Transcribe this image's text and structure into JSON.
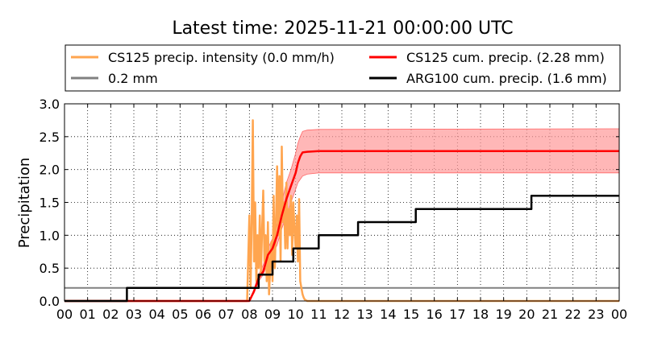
{
  "chart_data": {
    "type": "line",
    "title": "Latest time: 2025-11-21 00:00:00 UTC",
    "ylabel": "Precipitation",
    "xlabel": "",
    "xlim": [
      0,
      24
    ],
    "ylim": [
      0,
      3.0
    ],
    "grid": true,
    "grid_style": "dotted",
    "legend_position": "top (outside plot)",
    "x_ticks": [
      "00",
      "01",
      "02",
      "03",
      "04",
      "05",
      "06",
      "07",
      "08",
      "09",
      "10",
      "11",
      "12",
      "13",
      "14",
      "15",
      "16",
      "17",
      "18",
      "19",
      "20",
      "21",
      "22",
      "23",
      "00"
    ],
    "y_ticks": [
      "0.0",
      "0.5",
      "1.0",
      "1.5",
      "2.0",
      "2.5",
      "3.0"
    ],
    "legend": [
      {
        "label": "CS125 precip. intensity (0.0 mm/h)",
        "color": "#ffa54f"
      },
      {
        "label": "CS125 cum. precip. (2.28 mm)",
        "color": "#ff0000"
      },
      {
        "label": "0.2 mm",
        "color": "#808080"
      },
      {
        "label": "ARG100 cum. precip. (1.6 mm)",
        "color": "#000000"
      }
    ],
    "series": [
      {
        "name": "CS125 precip. intensity (0.0 mm/h)",
        "color": "#ffa54f",
        "x": [
          0,
          7.9,
          8.0,
          8.05,
          8.1,
          8.15,
          8.2,
          8.25,
          8.3,
          8.35,
          8.4,
          8.45,
          8.5,
          8.55,
          8.6,
          8.65,
          8.7,
          8.75,
          8.8,
          8.85,
          8.9,
          8.95,
          9.0,
          9.05,
          9.1,
          9.15,
          9.2,
          9.25,
          9.3,
          9.35,
          9.4,
          9.45,
          9.5,
          9.55,
          9.6,
          9.65,
          9.7,
          9.75,
          9.8,
          9.85,
          9.9,
          9.95,
          10.0,
          10.05,
          10.1,
          10.15,
          10.2,
          10.25,
          10.3,
          10.35,
          10.4,
          10.5,
          10.6,
          11.0,
          24
        ],
        "y": [
          0,
          0,
          1.3,
          0.2,
          1.2,
          2.75,
          0.6,
          1.5,
          0.3,
          1.0,
          0.5,
          1.3,
          0.4,
          1.1,
          1.68,
          0.6,
          1.0,
          0.3,
          1.2,
          0.1,
          0.5,
          0.9,
          0.3,
          1.6,
          0.5,
          1.2,
          2.05,
          1.0,
          1.9,
          0.6,
          2.35,
          1.2,
          1.5,
          0.8,
          1.8,
          0.8,
          1.4,
          1.0,
          1.6,
          0.7,
          1.5,
          1.1,
          0.8,
          1.3,
          0.6,
          1.55,
          0.3,
          0.2,
          0.1,
          0.05,
          0.02,
          0.0,
          0.0,
          0.0,
          0.0
        ]
      },
      {
        "name": "CS125 cum. precip. (2.28 mm)",
        "color": "#ff0000",
        "x": [
          0,
          8.0,
          8.2,
          8.4,
          8.6,
          8.8,
          9.0,
          9.2,
          9.4,
          9.6,
          9.8,
          10.0,
          10.1,
          10.2,
          10.3,
          10.5,
          11.0,
          24
        ],
        "y": [
          0,
          0,
          0.15,
          0.35,
          0.45,
          0.7,
          0.8,
          1.0,
          1.3,
          1.55,
          1.75,
          1.95,
          2.1,
          2.2,
          2.26,
          2.27,
          2.28,
          2.28
        ]
      },
      {
        "name": "CS125 cum. precip. uncertainty band",
        "color": "#ff9999",
        "x": [
          0,
          8.0,
          8.2,
          8.4,
          8.6,
          8.8,
          9.0,
          9.2,
          9.4,
          9.6,
          9.8,
          10.0,
          10.1,
          10.2,
          10.3,
          10.5,
          11.0,
          24
        ],
        "lower": [
          0,
          0,
          0.12,
          0.3,
          0.4,
          0.6,
          0.7,
          0.85,
          1.1,
          1.3,
          1.5,
          1.7,
          1.8,
          1.85,
          1.9,
          1.93,
          1.95,
          1.95
        ],
        "upper": [
          0,
          0,
          0.18,
          0.4,
          0.55,
          0.8,
          0.95,
          1.15,
          1.5,
          1.8,
          2.0,
          2.25,
          2.4,
          2.5,
          2.58,
          2.6,
          2.61,
          2.62
        ]
      },
      {
        "name": "0.2 mm",
        "color": "#808080",
        "x": [
          0,
          24
        ],
        "y": [
          0.2,
          0.2
        ]
      },
      {
        "name": "ARG100 cum. precip. (1.6 mm)",
        "color": "#000000",
        "x": [
          0,
          2.7,
          2.7,
          8.4,
          8.4,
          9.0,
          9.0,
          9.9,
          9.9,
          11.0,
          11.0,
          12.7,
          12.7,
          15.2,
          15.2,
          20.2,
          20.2,
          24
        ],
        "y": [
          0,
          0,
          0.2,
          0.2,
          0.4,
          0.4,
          0.6,
          0.6,
          0.8,
          0.8,
          1.0,
          1.0,
          1.2,
          1.2,
          1.4,
          1.4,
          1.6,
          1.6
        ]
      }
    ]
  }
}
